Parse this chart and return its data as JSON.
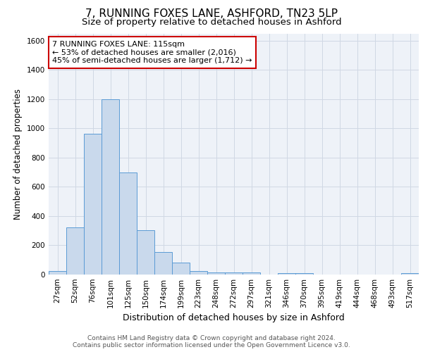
{
  "title1": "7, RUNNING FOXES LANE, ASHFORD, TN23 5LP",
  "title2": "Size of property relative to detached houses in Ashford",
  "xlabel": "Distribution of detached houses by size in Ashford",
  "ylabel": "Number of detached properties",
  "categories": [
    "27sqm",
    "52sqm",
    "76sqm",
    "101sqm",
    "125sqm",
    "150sqm",
    "174sqm",
    "199sqm",
    "223sqm",
    "248sqm",
    "272sqm",
    "297sqm",
    "321sqm",
    "346sqm",
    "370sqm",
    "395sqm",
    "419sqm",
    "444sqm",
    "468sqm",
    "493sqm",
    "517sqm"
  ],
  "values": [
    25,
    325,
    965,
    1200,
    700,
    305,
    155,
    80,
    25,
    15,
    15,
    15,
    0,
    10,
    10,
    0,
    0,
    0,
    0,
    0,
    10
  ],
  "bar_color": "#c9d9ec",
  "bar_edge_color": "#5b9bd5",
  "annotation_text": "7 RUNNING FOXES LANE: 115sqm\n← 53% of detached houses are smaller (2,016)\n45% of semi-detached houses are larger (1,712) →",
  "annotation_box_color": "#ffffff",
  "annotation_box_edge": "#cc0000",
  "ylim": [
    0,
    1650
  ],
  "yticks": [
    0,
    200,
    400,
    600,
    800,
    1000,
    1200,
    1400,
    1600
  ],
  "grid_color": "#d0d8e4",
  "background_color": "#eef2f8",
  "footer_text": "Contains HM Land Registry data © Crown copyright and database right 2024.\nContains public sector information licensed under the Open Government Licence v3.0.",
  "title1_fontsize": 11,
  "title2_fontsize": 9.5,
  "xlabel_fontsize": 9,
  "ylabel_fontsize": 8.5,
  "tick_fontsize": 7.5,
  "footer_fontsize": 6.5
}
